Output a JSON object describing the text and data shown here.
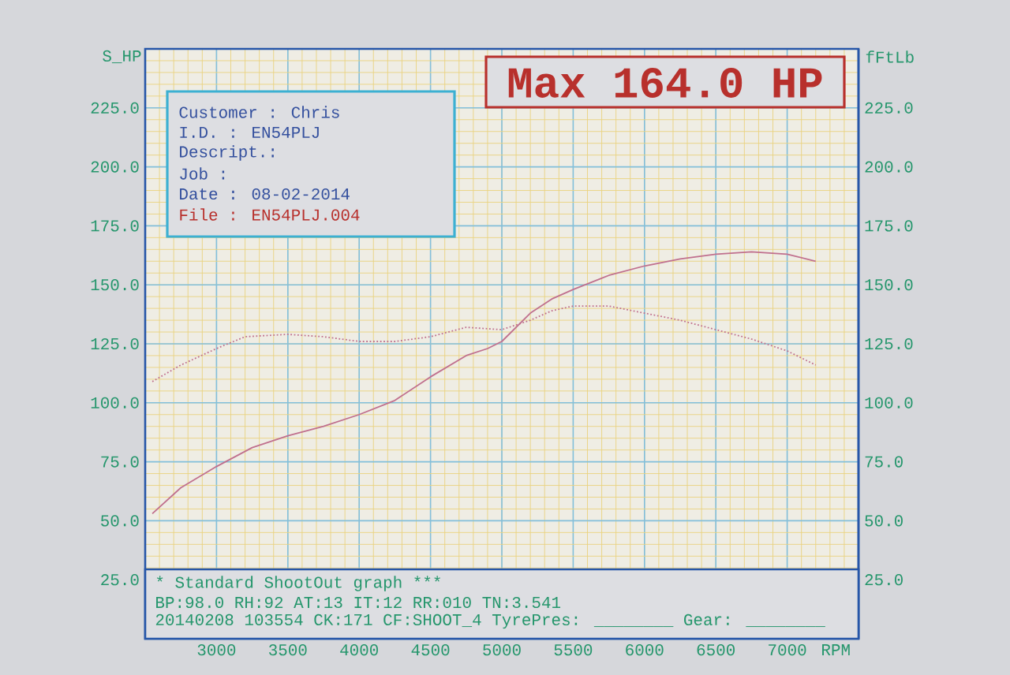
{
  "chart_data": {
    "type": "line",
    "xlabel": "RPM",
    "ylabel": "S_HP",
    "y2label": "fFtLb",
    "xlim": [
      2500,
      7500
    ],
    "xticks": [
      3000,
      3500,
      4000,
      4500,
      5000,
      5500,
      6000,
      6500,
      7000
    ],
    "ylim": [
      0,
      250
    ],
    "yticks": [
      {
        "value": 25,
        "label": "25.0"
      },
      {
        "value": 50,
        "label": "50.0"
      },
      {
        "value": 75,
        "label": "75.0"
      },
      {
        "value": 100,
        "label": "100.0"
      },
      {
        "value": 125,
        "label": "125.0"
      },
      {
        "value": 150,
        "label": "150.0"
      },
      {
        "value": 175,
        "label": "175.0"
      },
      {
        "value": 200,
        "label": "200.0"
      },
      {
        "value": 225,
        "label": "225.0"
      }
    ],
    "y2lim": [
      0,
      250
    ],
    "y2ticks": [
      {
        "value": 25,
        "label": "25.0"
      },
      {
        "value": 50,
        "label": "50.0"
      },
      {
        "value": 75,
        "label": "75.0"
      },
      {
        "value": 100,
        "label": "100.0"
      },
      {
        "value": 125,
        "label": "125.0"
      },
      {
        "value": 150,
        "label": "150.0"
      },
      {
        "value": 175,
        "label": "175.0"
      },
      {
        "value": 200,
        "label": "200.0"
      },
      {
        "value": 225,
        "label": "225.0"
      }
    ],
    "grid": true,
    "series": [
      {
        "color": "#c0708e",
        "line_style": "solid",
        "x": [
          2550,
          2750,
          3000,
          3250,
          3500,
          3750,
          4000,
          4250,
          4500,
          4750,
          4900,
          5000,
          5200,
          5350,
          5500,
          5750,
          6000,
          6250,
          6500,
          6750,
          7000,
          7200
        ],
        "values": [
          53,
          64,
          73,
          81,
          86,
          90,
          95,
          101,
          111,
          120,
          123,
          126,
          138,
          144,
          148,
          154,
          158,
          161,
          163,
          164,
          163,
          160
        ]
      },
      {
        "color": "#c0708e",
        "line_style": "dotted",
        "axis": "y2",
        "x": [
          2550,
          2750,
          3000,
          3200,
          3500,
          3750,
          4000,
          4250,
          4500,
          4750,
          5000,
          5200,
          5350,
          5500,
          5750,
          6000,
          6250,
          6500,
          6750,
          7000,
          7200
        ],
        "values": [
          109,
          116,
          123,
          128,
          129,
          128,
          126,
          126,
          128,
          132,
          131,
          135,
          139,
          141,
          141,
          138,
          135,
          131,
          127,
          122,
          116
        ]
      }
    ],
    "annotations": [
      "Max 164.0 HP",
      "Customer : Chris",
      "I.D. : EN54PLJ",
      "Descript.:",
      "Job :",
      "Date : 08-02-2014",
      "File : EN54PLJ.004",
      "* Standard ShootOut graph ***",
      "BP:98.0 RH:92 AT:13 IT:12 RR:010 TN:3.541",
      "20140208 103554 CK:171 CF:SHOOT_4 TyrePres: ________ Gear: ________"
    ]
  }
}
